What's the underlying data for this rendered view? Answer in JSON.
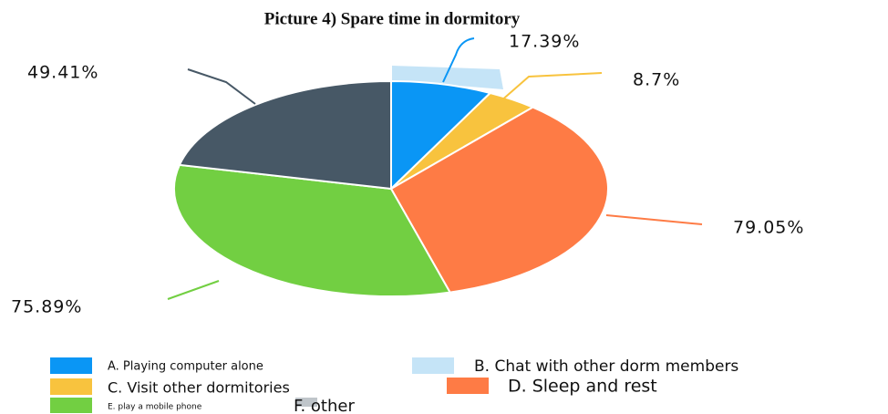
{
  "chart_data": {
    "type": "pie",
    "title": "Picture 4) Spare time in dormitory",
    "categories": [
      "A. Playing computer alone",
      "B. Chat with other dorm members",
      "C. Visit other dormitories",
      "D. Sleep and rest",
      "E. play a mobile phone",
      "F. other"
    ],
    "values": [
      17.39,
      null,
      8.7,
      79.05,
      75.89,
      49.41
    ],
    "value_labels": [
      "17.39%",
      null,
      "8.7%",
      "79.05%",
      "75.89%",
      "49.41%"
    ],
    "colors": [
      "#0a96f5",
      "#c5e4f7",
      "#f8c33e",
      "#fe7b45",
      "#72cf42",
      "#475866"
    ]
  }
}
